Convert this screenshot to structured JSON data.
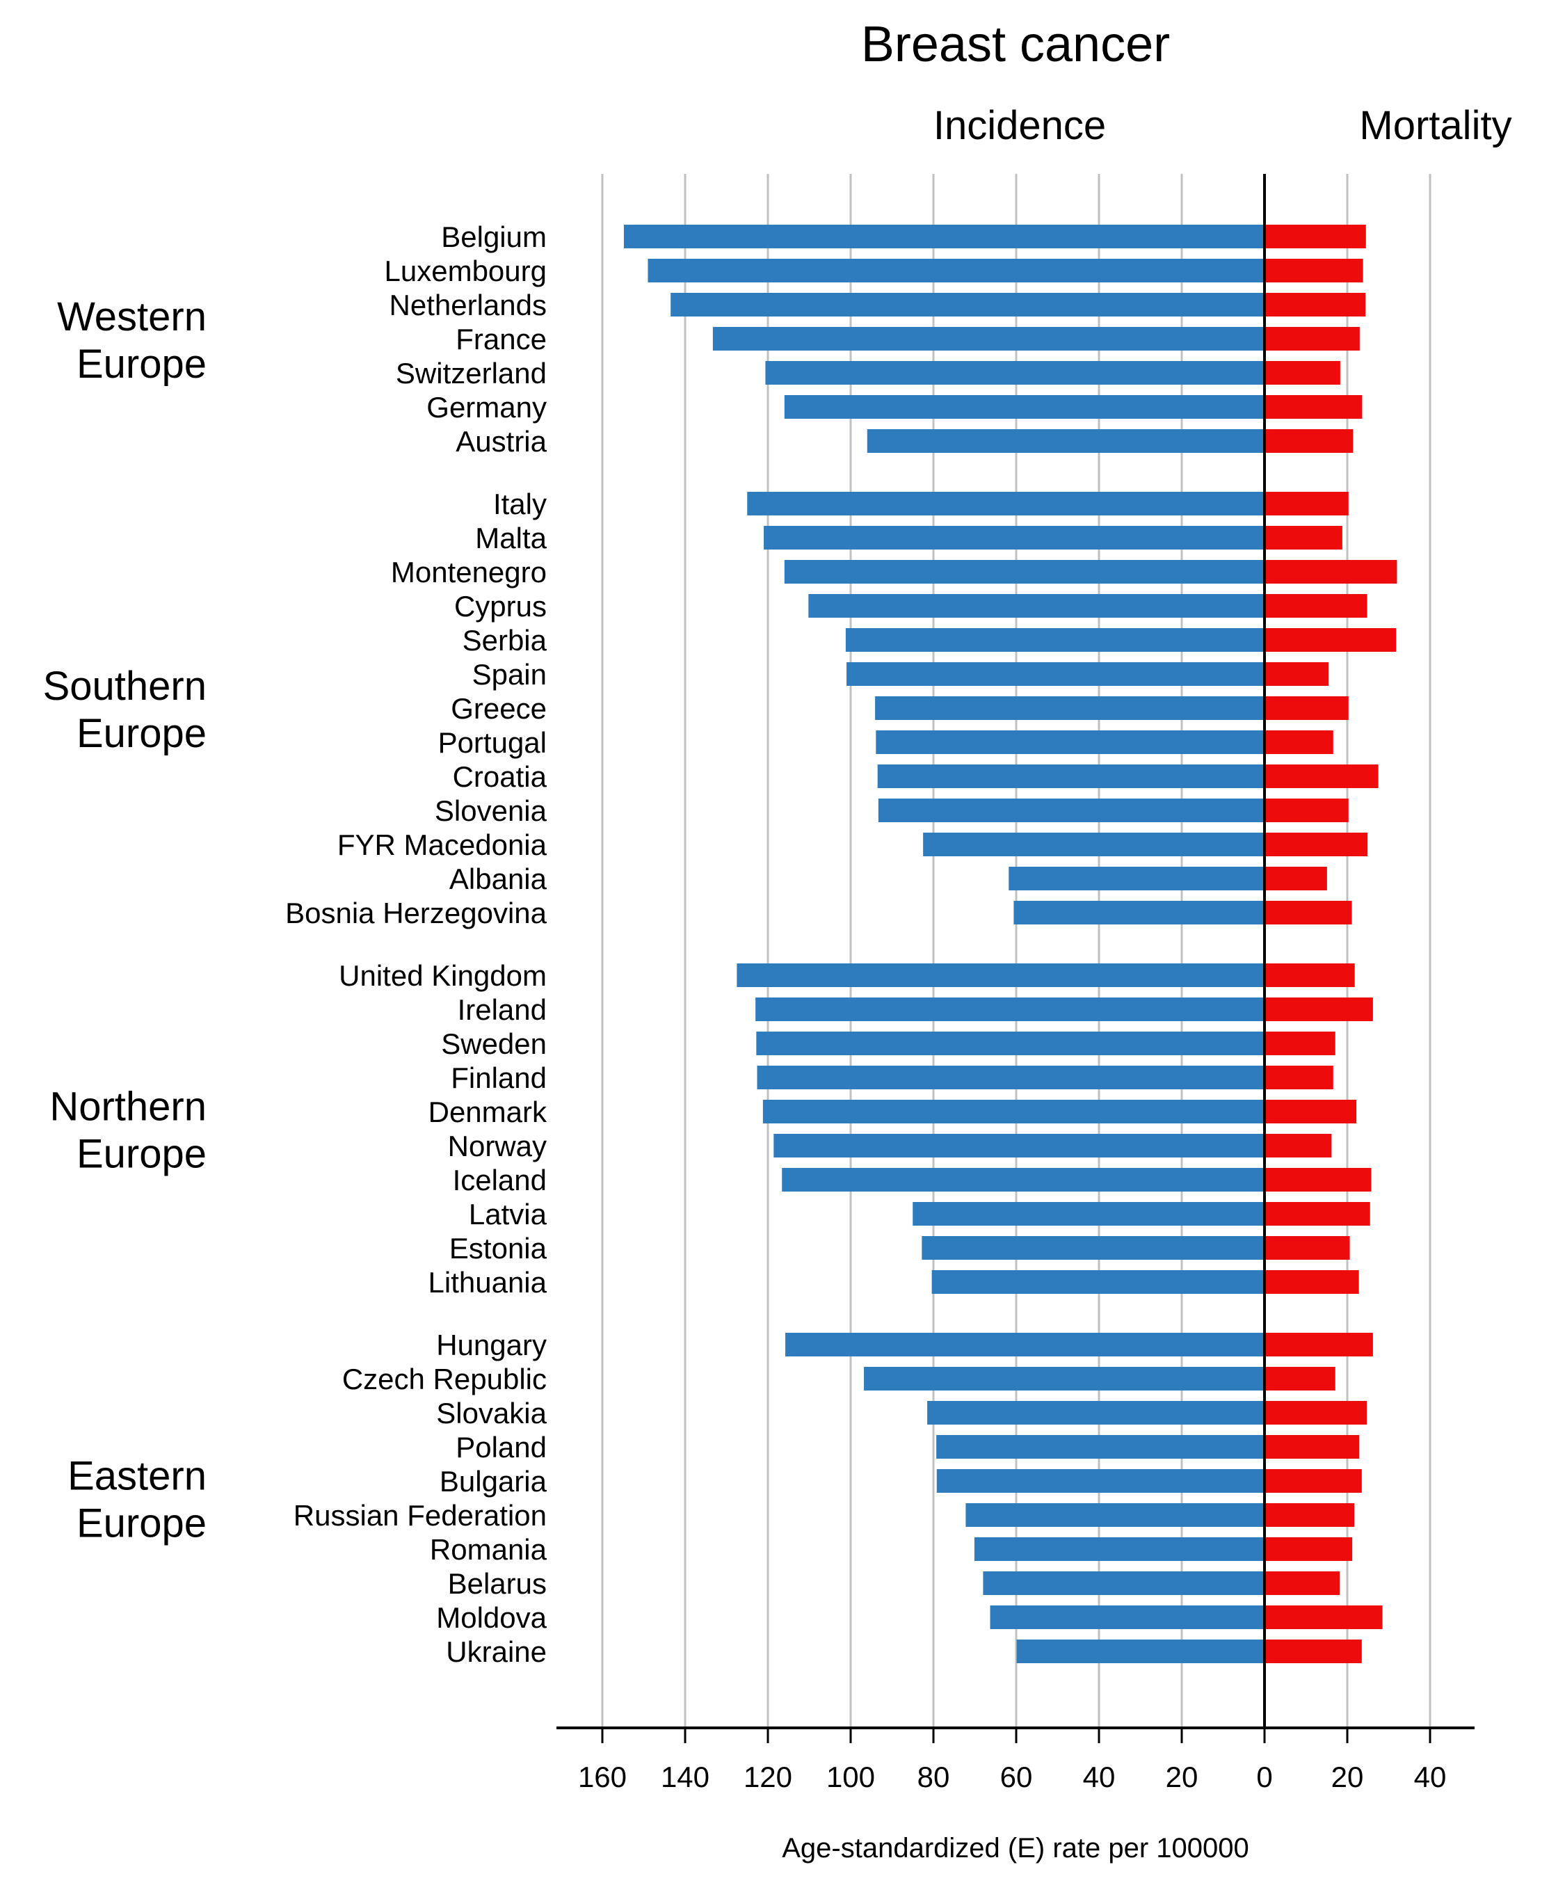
{
  "chart_data": {
    "type": "bar",
    "title": "Breast cancer",
    "xlabel": "Age-standardized (E) rate per 100000",
    "ylabel": "",
    "panels": {
      "left": "Incidence",
      "right": "Mortality"
    },
    "colors": {
      "incidence": "#2e7bbd",
      "mortality": "#ee0b0b",
      "grid": "#c0c0c0"
    },
    "grid": true,
    "ticks": {
      "incidence": [
        "160",
        "140",
        "120",
        "100",
        "80",
        "60",
        "40",
        "20",
        "0"
      ],
      "mortality": [
        "20",
        "40"
      ]
    },
    "xlim_incidence": [
      172,
      0
    ],
    "xlim_mortality": [
      0,
      52
    ],
    "groups": [
      {
        "region": [
          "Western",
          "Europe"
        ],
        "countries": [
          {
            "name": "Belgium",
            "incidence": 154.8,
            "mortality": 24.5
          },
          {
            "name": "Luxembourg",
            "incidence": 149,
            "mortality": 23.8
          },
          {
            "name": "Netherlands",
            "incidence": 143.5,
            "mortality": 24.4
          },
          {
            "name": "France",
            "incidence": 133.3,
            "mortality": 23
          },
          {
            "name": "Switzerland",
            "incidence": 120.6,
            "mortality": 18.3
          },
          {
            "name": "Germany",
            "incidence": 116,
            "mortality": 23.6
          },
          {
            "name": "Austria",
            "incidence": 96,
            "mortality": 21.4
          }
        ]
      },
      {
        "region": [
          "Southern",
          "Europe"
        ],
        "countries": [
          {
            "name": "Italy",
            "incidence": 125,
            "mortality": 20.3
          },
          {
            "name": "Malta",
            "incidence": 121,
            "mortality": 18.8
          },
          {
            "name": "Montenegro",
            "incidence": 116,
            "mortality": 32
          },
          {
            "name": "Cyprus",
            "incidence": 110.2,
            "mortality": 24.8
          },
          {
            "name": "Serbia",
            "incidence": 101.2,
            "mortality": 31.8
          },
          {
            "name": "Spain",
            "incidence": 101,
            "mortality": 15.5
          },
          {
            "name": "Greece",
            "incidence": 94.1,
            "mortality": 20.3
          },
          {
            "name": "Portugal",
            "incidence": 93.9,
            "mortality": 16.6
          },
          {
            "name": "Croatia",
            "incidence": 93.5,
            "mortality": 27.5
          },
          {
            "name": "Slovenia",
            "incidence": 93.3,
            "mortality": 20.3
          },
          {
            "name": "FYR Macedonia",
            "incidence": 82.5,
            "mortality": 24.9
          },
          {
            "name": "Albania",
            "incidence": 61.8,
            "mortality": 15.1
          },
          {
            "name": "Bosnia Herzegovina",
            "incidence": 60.6,
            "mortality": 21.1
          }
        ]
      },
      {
        "region": [
          "Northern",
          "Europe"
        ],
        "countries": [
          {
            "name": "United Kingdom",
            "incidence": 127.5,
            "mortality": 21.8
          },
          {
            "name": "Ireland",
            "incidence": 123,
            "mortality": 26.2
          },
          {
            "name": "Sweden",
            "incidence": 122.8,
            "mortality": 17.1
          },
          {
            "name": "Finland",
            "incidence": 122.6,
            "mortality": 16.6
          },
          {
            "name": "Denmark",
            "incidence": 121.2,
            "mortality": 22.2
          },
          {
            "name": "Norway",
            "incidence": 118.6,
            "mortality": 16.2
          },
          {
            "name": "Iceland",
            "incidence": 116.6,
            "mortality": 25.8
          },
          {
            "name": "Latvia",
            "incidence": 85,
            "mortality": 25.5
          },
          {
            "name": "Estonia",
            "incidence": 82.8,
            "mortality": 20.6
          },
          {
            "name": "Lithuania",
            "incidence": 80.4,
            "mortality": 22.8
          }
        ]
      },
      {
        "region": [
          "Eastern",
          "Europe"
        ],
        "countries": [
          {
            "name": "Hungary",
            "incidence": 115.8,
            "mortality": 26.2
          },
          {
            "name": "Czech Republic",
            "incidence": 96.8,
            "mortality": 17.1
          },
          {
            "name": "Slovakia",
            "incidence": 81.5,
            "mortality": 24.7
          },
          {
            "name": "Poland",
            "incidence": 79.3,
            "mortality": 22.9
          },
          {
            "name": "Bulgaria",
            "incidence": 79.2,
            "mortality": 23.5
          },
          {
            "name": "Russian Federation",
            "incidence": 72.2,
            "mortality": 21.7
          },
          {
            "name": "Romania",
            "incidence": 70.1,
            "mortality": 21.2
          },
          {
            "name": "Belarus",
            "incidence": 68,
            "mortality": 18.2
          },
          {
            "name": "Moldova",
            "incidence": 66.3,
            "mortality": 28.5
          },
          {
            "name": "Ukraine",
            "incidence": 59.9,
            "mortality": 23.5
          }
        ]
      }
    ]
  }
}
